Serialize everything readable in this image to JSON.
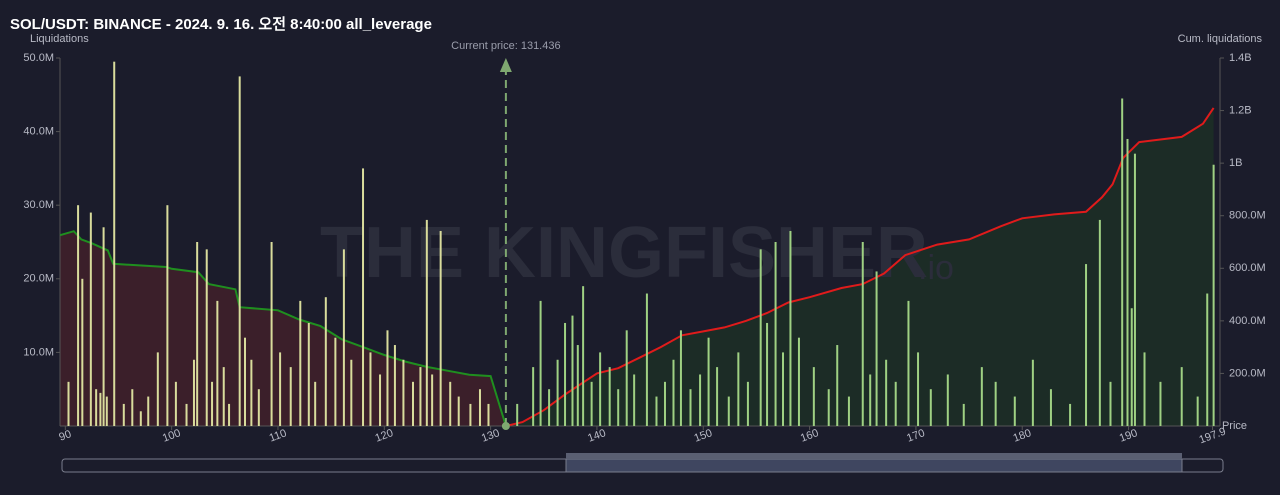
{
  "chart_data": {
    "type": "combo",
    "title": "SOL/USDT: BINANCE - 2024. 9. 16. 오전 8:40:00 all_leverage",
    "y_label": "Liquidations",
    "y2_label": "Cum. liquidations",
    "x_label": "Price",
    "watermark": [
      "THE KINGFISHER",
      ".io"
    ],
    "current_price": 131.436,
    "current_price_label": "Current price: 131.436",
    "xlim": [
      89.5,
      198.6
    ],
    "xticks": [
      90,
      100,
      110,
      120,
      130,
      140,
      150,
      160,
      170,
      180,
      190,
      197.9
    ],
    "ylim": [
      0,
      50
    ],
    "yticks": [
      {
        "value": 10,
        "label": "10.0M"
      },
      {
        "value": 20,
        "label": "20.0M"
      },
      {
        "value": 30,
        "label": "30.0M"
      },
      {
        "value": 40,
        "label": "40.0M"
      },
      {
        "value": 50,
        "label": "50.0M"
      }
    ],
    "y2lim": [
      0,
      1400
    ],
    "y2ticks": [
      {
        "value": 200,
        "label": "200.0M"
      },
      {
        "value": 400,
        "label": "400.0M"
      },
      {
        "value": 600,
        "label": "600.0M"
      },
      {
        "value": 800,
        "label": "800.0M"
      },
      {
        "value": 1000,
        "label": "1B"
      },
      {
        "value": 1200,
        "label": "1.2B"
      },
      {
        "value": 1400,
        "label": "1.4B"
      }
    ],
    "series": [
      {
        "type": "bar",
        "color": "#d9dc9c",
        "x": [
          90.3,
          91.2,
          91.6,
          92.4,
          92.9,
          93.3,
          93.6,
          93.9,
          94.6,
          95.5,
          96.3,
          97.1,
          97.8,
          98.7,
          99.6,
          100.4,
          101.4,
          102.1,
          102.4,
          103.3,
          103.8,
          104.3,
          104.9,
          105.4,
          106.4,
          106.9,
          107.5,
          108.2,
          109.4,
          110.2,
          111.2,
          112.1,
          112.9,
          113.5,
          114.5,
          115.4,
          116.2,
          116.9,
          118.0,
          118.7,
          119.6,
          120.3,
          121.0,
          121.8,
          122.7,
          123.4,
          124.0,
          124.5,
          125.3,
          126.2,
          127.0,
          128.1,
          129.0,
          129.8
        ],
        "values": [
          6,
          30,
          20,
          29,
          5,
          4.5,
          27,
          4,
          49.5,
          3,
          5,
          2,
          4,
          10,
          30,
          6,
          3,
          9,
          25,
          24,
          6,
          17,
          8,
          3,
          47.5,
          12,
          9,
          5,
          25,
          10,
          8,
          17,
          14,
          6,
          17.5,
          12,
          24,
          9,
          35,
          10,
          7,
          13,
          11,
          9,
          6,
          8,
          28,
          7,
          26.5,
          6,
          4,
          3,
          5,
          3
        ]
      },
      {
        "type": "bar",
        "color": "#9fd183",
        "x": [
          132.5,
          134.0,
          134.7,
          135.5,
          136.3,
          137.0,
          137.7,
          138.2,
          138.7,
          139.5,
          140.3,
          141.2,
          142.0,
          142.8,
          143.5,
          144.7,
          145.6,
          146.4,
          147.2,
          147.9,
          148.8,
          149.7,
          150.5,
          151.3,
          152.4,
          153.3,
          154.2,
          155.4,
          156.0,
          156.8,
          157.5,
          158.2,
          159.0,
          160.4,
          161.8,
          162.6,
          163.7,
          165.0,
          165.7,
          166.3,
          167.2,
          168.1,
          169.3,
          170.2,
          171.4,
          173.0,
          174.5,
          176.2,
          177.5,
          179.3,
          181.0,
          182.7,
          184.5,
          186.0,
          187.3,
          188.3,
          189.4,
          189.9,
          190.3,
          190.6,
          191.5,
          193.0,
          195.0,
          196.5,
          197.4,
          198.0
        ],
        "values": [
          3,
          8,
          17,
          5,
          9,
          14,
          15,
          11,
          19,
          6,
          10,
          8,
          5,
          13,
          7,
          18,
          4,
          6,
          9,
          13,
          5,
          7,
          12,
          8,
          4,
          10,
          6,
          24,
          14,
          25,
          10,
          26.5,
          12,
          8,
          5,
          11,
          4,
          25,
          7,
          21,
          9,
          6,
          17,
          10,
          5,
          7,
          3,
          8,
          6,
          4,
          9,
          5,
          3,
          22,
          28,
          6,
          44.5,
          39,
          16,
          37,
          10,
          6,
          8,
          4,
          18,
          35.5
        ]
      },
      {
        "type": "line",
        "axis": "y2",
        "color": "#1f8f1f",
        "fill": "#3b1f2a",
        "x": [
          89.5,
          90.8,
          91.5,
          92.5,
          94,
          94.5,
          99.5,
          100,
          102.5,
          103.5,
          106,
          106.4,
          110,
          112,
          114,
          116,
          118,
          120,
          122,
          124,
          126,
          128,
          130,
          131.436
        ],
        "values": [
          726,
          741,
          710,
          695,
          668,
          617,
          605,
          598,
          585,
          540,
          520,
          452,
          440,
          405,
          380,
          330,
          300,
          270,
          245,
          225,
          210,
          195,
          190,
          0
        ]
      },
      {
        "type": "line",
        "axis": "y2",
        "color": "#e01b1b",
        "fill": "#1c2c26",
        "x": [
          131.436,
          133,
          135,
          137,
          140,
          142,
          144,
          146,
          148,
          150,
          152,
          154,
          156,
          158,
          160,
          163,
          165,
          167,
          169,
          172,
          175,
          178,
          180,
          183,
          186,
          187.5,
          188.5,
          189.5,
          191,
          195,
          197,
          198
        ],
        "values": [
          0,
          15,
          60,
          120,
          200,
          220,
          260,
          300,
          345,
          360,
          375,
          400,
          430,
          470,
          490,
          525,
          540,
          580,
          650,
          690,
          710,
          760,
          790,
          805,
          815,
          870,
          920,
          1020,
          1080,
          1100,
          1150,
          1210
        ]
      }
    ]
  }
}
